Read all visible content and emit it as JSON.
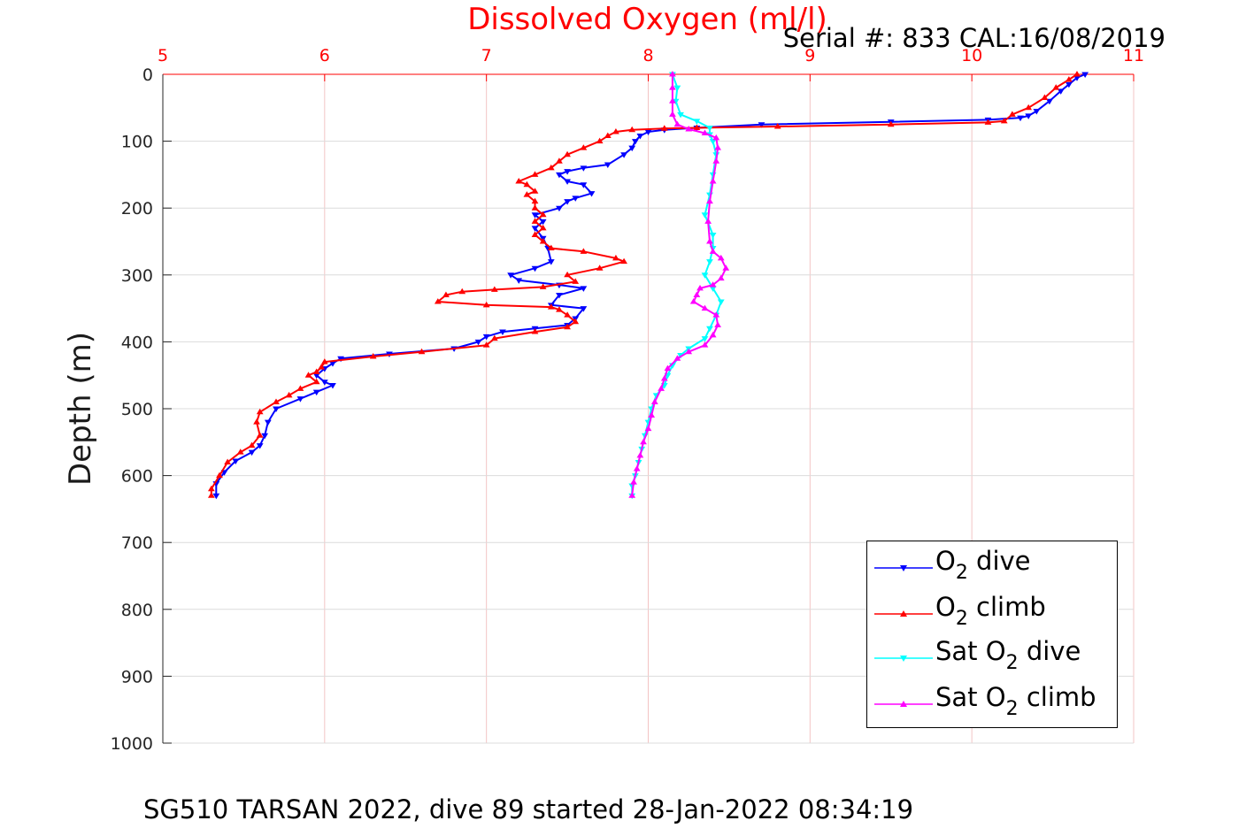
{
  "chart_data": {
    "type": "line",
    "title": "Dissolved Oxygen (ml/l)",
    "annotation": "Serial #: 833  CAL:16/08/2019",
    "caption": "SG510 TARSAN 2022, dive 89 started 28-Jan-2022 08:34:19",
    "ylabel": "Depth (m)",
    "xlim": [
      5,
      11
    ],
    "ylim": [
      0,
      1000
    ],
    "y_reversed": true,
    "x_axis_position": "top",
    "xticks": [
      "5",
      "6",
      "7",
      "8",
      "9",
      "10",
      "11"
    ],
    "yticks": [
      "0",
      "100",
      "200",
      "300",
      "400",
      "500",
      "600",
      "700",
      "800",
      "900",
      "1000"
    ],
    "grid": true,
    "legend_position": "bottom-right",
    "series": [
      {
        "name": "O2 dive",
        "legend": {
          "pre": "O",
          "sub": "2",
          "post": " dive"
        },
        "color": "#0000ff",
        "marker": "triangle-down",
        "points": [
          [
            10.7,
            0
          ],
          [
            10.65,
            5
          ],
          [
            10.6,
            15
          ],
          [
            10.55,
            25
          ],
          [
            10.48,
            40
          ],
          [
            10.4,
            55
          ],
          [
            10.35,
            62
          ],
          [
            10.3,
            65
          ],
          [
            10.1,
            68
          ],
          [
            9.5,
            71
          ],
          [
            8.7,
            75
          ],
          [
            8.3,
            80
          ],
          [
            8.1,
            83
          ],
          [
            8.0,
            86
          ],
          [
            7.95,
            92
          ],
          [
            7.92,
            100
          ],
          [
            7.9,
            110
          ],
          [
            7.85,
            120
          ],
          [
            7.75,
            135
          ],
          [
            7.6,
            140
          ],
          [
            7.5,
            145
          ],
          [
            7.45,
            150
          ],
          [
            7.5,
            160
          ],
          [
            7.6,
            165
          ],
          [
            7.65,
            178
          ],
          [
            7.55,
            185
          ],
          [
            7.5,
            190
          ],
          [
            7.45,
            200
          ],
          [
            7.3,
            210
          ],
          [
            7.35,
            220
          ],
          [
            7.3,
            230
          ],
          [
            7.35,
            245
          ],
          [
            7.38,
            260
          ],
          [
            7.4,
            280
          ],
          [
            7.3,
            290
          ],
          [
            7.15,
            300
          ],
          [
            7.2,
            308
          ],
          [
            7.45,
            315
          ],
          [
            7.6,
            320
          ],
          [
            7.45,
            330
          ],
          [
            7.4,
            345
          ],
          [
            7.6,
            350
          ],
          [
            7.55,
            365
          ],
          [
            7.5,
            375
          ],
          [
            7.3,
            380
          ],
          [
            7.1,
            385
          ],
          [
            7.0,
            392
          ],
          [
            6.95,
            400
          ],
          [
            6.8,
            410
          ],
          [
            6.4,
            418
          ],
          [
            6.1,
            425
          ],
          [
            6.05,
            432
          ],
          [
            6.0,
            440
          ],
          [
            5.95,
            450
          ],
          [
            6.0,
            460
          ],
          [
            6.05,
            465
          ],
          [
            5.95,
            475
          ],
          [
            5.85,
            485
          ],
          [
            5.7,
            500
          ],
          [
            5.65,
            520
          ],
          [
            5.63,
            540
          ],
          [
            5.6,
            555
          ],
          [
            5.55,
            565
          ],
          [
            5.45,
            578
          ],
          [
            5.38,
            595
          ],
          [
            5.33,
            612
          ],
          [
            5.33,
            630
          ]
        ]
      },
      {
        "name": "O2 climb",
        "legend": {
          "pre": "O",
          "sub": "2",
          "post": " climb"
        },
        "color": "#ff0000",
        "marker": "triangle-up",
        "points": [
          [
            10.65,
            0
          ],
          [
            10.6,
            8
          ],
          [
            10.52,
            20
          ],
          [
            10.45,
            35
          ],
          [
            10.35,
            50
          ],
          [
            10.25,
            60
          ],
          [
            10.2,
            70
          ],
          [
            10.1,
            72
          ],
          [
            9.5,
            75
          ],
          [
            8.8,
            78
          ],
          [
            8.3,
            80
          ],
          [
            8.1,
            81
          ],
          [
            7.9,
            83
          ],
          [
            7.8,
            86
          ],
          [
            7.75,
            92
          ],
          [
            7.7,
            100
          ],
          [
            7.6,
            110
          ],
          [
            7.5,
            120
          ],
          [
            7.45,
            130
          ],
          [
            7.4,
            140
          ],
          [
            7.3,
            150
          ],
          [
            7.2,
            160
          ],
          [
            7.25,
            165
          ],
          [
            7.3,
            175
          ],
          [
            7.25,
            180
          ],
          [
            7.3,
            190
          ],
          [
            7.3,
            200
          ],
          [
            7.35,
            210
          ],
          [
            7.3,
            220
          ],
          [
            7.35,
            230
          ],
          [
            7.3,
            240
          ],
          [
            7.35,
            250
          ],
          [
            7.4,
            260
          ],
          [
            7.6,
            265
          ],
          [
            7.8,
            275
          ],
          [
            7.85,
            280
          ],
          [
            7.7,
            290
          ],
          [
            7.5,
            300
          ],
          [
            7.55,
            310
          ],
          [
            7.35,
            318
          ],
          [
            7.05,
            322
          ],
          [
            6.85,
            325
          ],
          [
            6.75,
            330
          ],
          [
            6.7,
            340
          ],
          [
            7.0,
            345
          ],
          [
            7.4,
            348
          ],
          [
            7.45,
            352
          ],
          [
            7.5,
            360
          ],
          [
            7.55,
            370
          ],
          [
            7.5,
            378
          ],
          [
            7.3,
            385
          ],
          [
            7.05,
            395
          ],
          [
            7.0,
            405
          ],
          [
            6.6,
            415
          ],
          [
            6.3,
            422
          ],
          [
            6.0,
            430
          ],
          [
            5.98,
            438
          ],
          [
            5.95,
            445
          ],
          [
            5.9,
            450
          ],
          [
            5.95,
            460
          ],
          [
            5.85,
            470
          ],
          [
            5.78,
            480
          ],
          [
            5.7,
            490
          ],
          [
            5.6,
            505
          ],
          [
            5.58,
            520
          ],
          [
            5.6,
            540
          ],
          [
            5.55,
            555
          ],
          [
            5.48,
            565
          ],
          [
            5.4,
            580
          ],
          [
            5.35,
            600
          ],
          [
            5.3,
            620
          ],
          [
            5.3,
            630
          ]
        ]
      },
      {
        "name": "Sat O2 dive",
        "legend": {
          "pre": "Sat O",
          "sub": "2",
          "post": " dive"
        },
        "color": "#00ffff",
        "marker": "triangle-down",
        "points": [
          [
            8.15,
            0
          ],
          [
            8.18,
            20
          ],
          [
            8.17,
            40
          ],
          [
            8.2,
            60
          ],
          [
            8.3,
            70
          ],
          [
            8.38,
            80
          ],
          [
            8.38,
            90
          ],
          [
            8.4,
            100
          ],
          [
            8.42,
            120
          ],
          [
            8.4,
            150
          ],
          [
            8.38,
            180
          ],
          [
            8.35,
            210
          ],
          [
            8.4,
            240
          ],
          [
            8.4,
            260
          ],
          [
            8.38,
            280
          ],
          [
            8.35,
            300
          ],
          [
            8.4,
            320
          ],
          [
            8.45,
            340
          ],
          [
            8.42,
            360
          ],
          [
            8.38,
            380
          ],
          [
            8.35,
            395
          ],
          [
            8.25,
            410
          ],
          [
            8.2,
            420
          ],
          [
            8.15,
            435
          ],
          [
            8.12,
            450
          ],
          [
            8.1,
            465
          ],
          [
            8.05,
            480
          ],
          [
            8.02,
            500
          ],
          [
            8.0,
            520
          ],
          [
            7.98,
            540
          ],
          [
            7.96,
            560
          ],
          [
            7.94,
            580
          ],
          [
            7.92,
            600
          ],
          [
            7.9,
            615
          ],
          [
            7.9,
            630
          ]
        ]
      },
      {
        "name": "Sat O2 climb",
        "legend": {
          "pre": "Sat O",
          "sub": "2",
          "post": " climb"
        },
        "color": "#ff00ff",
        "marker": "triangle-up",
        "points": [
          [
            8.15,
            0
          ],
          [
            8.15,
            20
          ],
          [
            8.15,
            40
          ],
          [
            8.15,
            60
          ],
          [
            8.18,
            75
          ],
          [
            8.25,
            82
          ],
          [
            8.35,
            88
          ],
          [
            8.42,
            95
          ],
          [
            8.43,
            110
          ],
          [
            8.42,
            130
          ],
          [
            8.4,
            160
          ],
          [
            8.38,
            190
          ],
          [
            8.37,
            220
          ],
          [
            8.38,
            250
          ],
          [
            8.4,
            265
          ],
          [
            8.45,
            275
          ],
          [
            8.48,
            290
          ],
          [
            8.45,
            305
          ],
          [
            8.4,
            315
          ],
          [
            8.32,
            320
          ],
          [
            8.3,
            330
          ],
          [
            8.28,
            340
          ],
          [
            8.35,
            350
          ],
          [
            8.42,
            360
          ],
          [
            8.43,
            375
          ],
          [
            8.4,
            390
          ],
          [
            8.35,
            405
          ],
          [
            8.25,
            415
          ],
          [
            8.18,
            425
          ],
          [
            8.12,
            440
          ],
          [
            8.1,
            455
          ],
          [
            8.08,
            470
          ],
          [
            8.04,
            490
          ],
          [
            8.02,
            510
          ],
          [
            8.0,
            530
          ],
          [
            7.97,
            550
          ],
          [
            7.95,
            570
          ],
          [
            7.93,
            590
          ],
          [
            7.91,
            610
          ],
          [
            7.9,
            630
          ]
        ]
      }
    ]
  }
}
